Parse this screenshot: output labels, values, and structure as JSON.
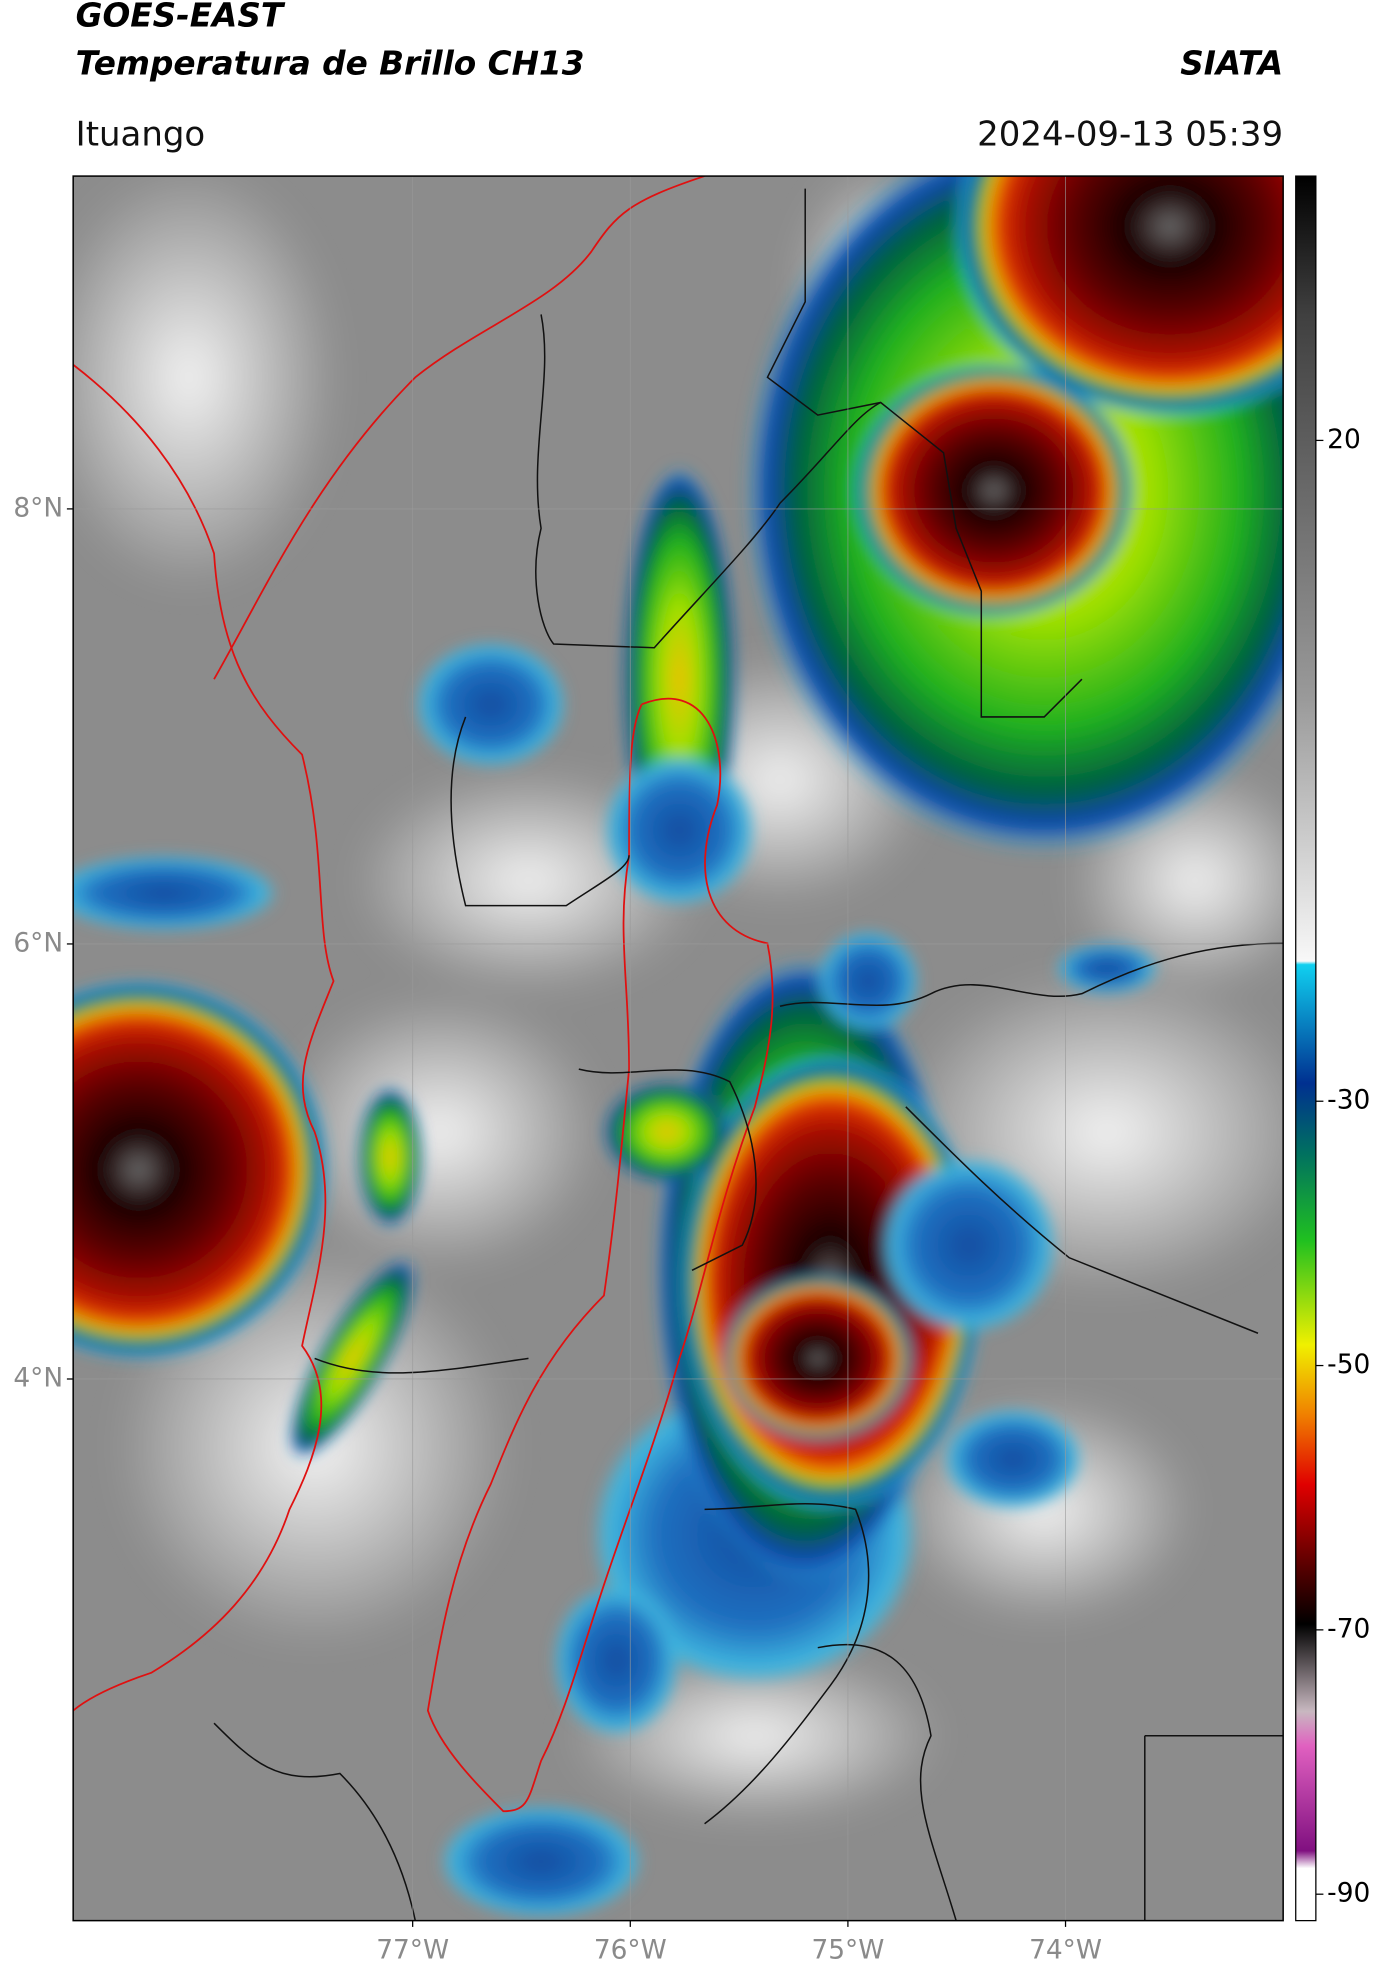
{
  "header": {
    "title": "GOES-EAST",
    "subtitle": "Temperatura de Brillo CH13",
    "source": "SIATA",
    "location": "Ituango",
    "timestamp": "2024-09-13 05:39"
  },
  "map": {
    "xlim": [
      -78.56,
      -73.0
    ],
    "ylim": [
      1.51,
      9.53
    ],
    "xticks": [
      {
        "value": -77,
        "label": "77°W"
      },
      {
        "value": -76,
        "label": "76°W"
      },
      {
        "value": -75,
        "label": "75°W"
      },
      {
        "value": -74,
        "label": "74°W"
      }
    ],
    "yticks": [
      {
        "value": 8,
        "label": "8°N"
      },
      {
        "value": 6,
        "label": "6°N"
      },
      {
        "value": 4,
        "label": "4°N"
      }
    ],
    "grid": true
  },
  "colorbar": {
    "clim": [
      -92,
      40
    ],
    "ticks": [
      20,
      -30,
      -50,
      -70,
      -90
    ]
  }
}
